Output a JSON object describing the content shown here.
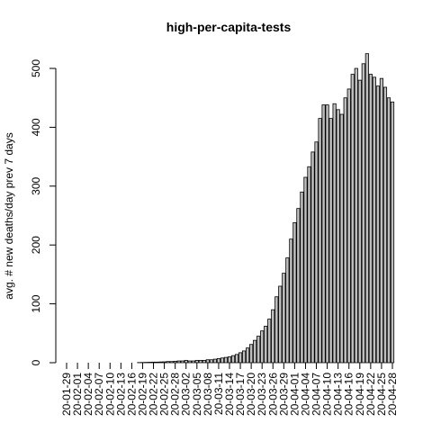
{
  "chart_data": {
    "type": "bar",
    "title": "high-per-capita-tests",
    "y_label": "avg. # new deaths/day prev  7  days",
    "categories": [
      "20-01-29",
      null,
      null,
      "20-02-01",
      null,
      null,
      "20-02-04",
      null,
      null,
      "20-02-07",
      null,
      null,
      "20-02-10",
      null,
      null,
      "20-02-13",
      null,
      null,
      "20-02-16",
      null,
      null,
      "20-02-19",
      null,
      null,
      "20-02-22",
      null,
      null,
      "20-02-25",
      null,
      null,
      "20-02-28",
      null,
      null,
      "20-03-02",
      null,
      null,
      "20-03-05",
      null,
      null,
      "20-03-08",
      null,
      null,
      "20-03-11",
      null,
      null,
      "20-03-14",
      null,
      null,
      "20-03-17",
      null,
      null,
      "20-03-20",
      null,
      null,
      "20-03-23",
      null,
      null,
      "20-03-26",
      null,
      null,
      "20-03-29",
      null,
      null,
      "20-04-01",
      null,
      null,
      "20-04-04",
      null,
      null,
      "20-04-07",
      null,
      null,
      "20-04-10",
      null,
      null,
      "20-04-13",
      null,
      null,
      "20-04-16",
      null,
      null,
      "20-04-19",
      null,
      null,
      "20-04-22",
      null,
      null,
      "20-04-25",
      null,
      null,
      "20-04-28"
    ],
    "values": [
      0,
      0,
      0,
      0,
      0,
      0,
      0,
      0,
      0,
      0,
      0,
      0,
      0,
      0,
      0,
      0,
      0,
      0,
      0,
      0,
      0.3,
      0.4,
      0.6,
      0.8,
      1,
      1,
      1.3,
      1.5,
      2,
      2,
      2.5,
      3,
      3,
      4,
      3,
      3,
      4,
      4,
      4,
      5,
      5,
      6,
      7,
      8,
      9,
      10,
      12,
      14,
      17,
      20,
      25,
      31,
      38,
      45,
      54,
      62,
      74,
      90,
      112,
      130,
      152,
      178,
      210,
      238,
      262,
      290,
      315,
      333,
      358,
      375,
      415,
      438,
      438,
      415,
      440,
      430,
      422,
      450,
      465,
      490,
      500,
      480,
      508,
      525,
      490,
      485,
      470,
      483,
      468,
      450,
      443
    ],
    "color": "#bebebe",
    "ylim": [
      0,
      530
    ],
    "yticks": [
      0,
      100,
      200,
      300,
      400,
      500
    ]
  }
}
